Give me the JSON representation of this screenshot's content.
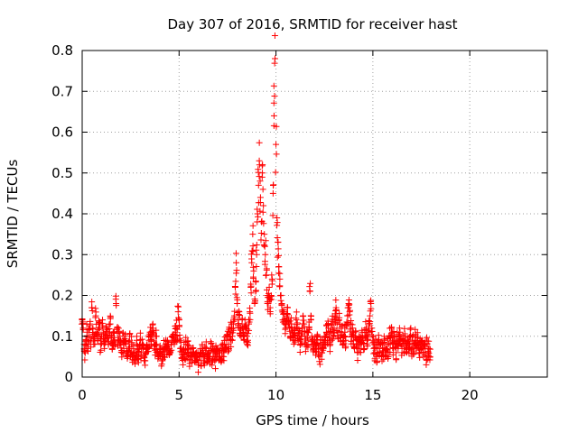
{
  "chart_data": {
    "type": "scatter",
    "title": "Day 307 of 2016, SRMTID for receiver hast",
    "xlabel": "GPS time / hours",
    "ylabel": "SRMTID / TECUs",
    "xlim": [
      0,
      24
    ],
    "ylim": [
      0,
      0.8
    ],
    "x_ticks": [
      "0",
      "5",
      "10",
      "15",
      "20"
    ],
    "y_ticks": [
      "0",
      "0.1",
      "0.2",
      "0.3",
      "0.4",
      "0.5",
      "0.6",
      "0.7",
      "0.8"
    ],
    "x_tick_values": [
      0,
      5,
      10,
      15,
      20
    ],
    "y_tick_values": [
      0,
      0.1,
      0.2,
      0.3,
      0.4,
      0.5,
      0.6,
      0.7,
      0.8
    ],
    "grid": true,
    "marker": "+",
    "color": "#ff0000",
    "series": [
      {
        "name": "SRMTID",
        "x_start": 0,
        "x_step": 0.05,
        "values": [
          0.14,
          0.12,
          0.08,
          0.06,
          0.09,
          0.11,
          0.07,
          0.1,
          0.13,
          0.09,
          0.17,
          0.12,
          0.08,
          0.1,
          0.15,
          0.11,
          0.09,
          0.13,
          0.12,
          0.08,
          0.1,
          0.14,
          0.11,
          0.07,
          0.09,
          0.12,
          0.1,
          0.08,
          0.11,
          0.13,
          0.1,
          0.07,
          0.09,
          0.11,
          0.08,
          0.18,
          0.12,
          0.09,
          0.11,
          0.1,
          0.08,
          0.06,
          0.09,
          0.07,
          0.1,
          0.08,
          0.06,
          0.05,
          0.07,
          0.09,
          0.06,
          0.08,
          0.05,
          0.07,
          0.06,
          0.04,
          0.08,
          0.06,
          0.05,
          0.07,
          0.09,
          0.06,
          0.08,
          0.07,
          0.05,
          0.04,
          0.06,
          0.08,
          0.07,
          0.09,
          0.11,
          0.08,
          0.1,
          0.13,
          0.09,
          0.07,
          0.1,
          0.08,
          0.06,
          0.05,
          0.07,
          0.06,
          0.04,
          0.05,
          0.07,
          0.06,
          0.08,
          0.07,
          0.09,
          0.08,
          0.07,
          0.06,
          0.08,
          0.1,
          0.09,
          0.08,
          0.11,
          0.12,
          0.1,
          0.16,
          0.14,
          0.09,
          0.07,
          0.06,
          0.05,
          0.07,
          0.06,
          0.08,
          0.05,
          0.07,
          0.06,
          0.04,
          0.06,
          0.05,
          0.07,
          0.06,
          0.05,
          0.04,
          0.06,
          0.05,
          0.03,
          0.05,
          0.07,
          0.04,
          0.06,
          0.05,
          0.04,
          0.06,
          0.07,
          0.05,
          0.04,
          0.06,
          0.05,
          0.07,
          0.04,
          0.06,
          0.05,
          0.04,
          0.06,
          0.05,
          0.07,
          0.06,
          0.05,
          0.04,
          0.06,
          0.07,
          0.05,
          0.08,
          0.07,
          0.09,
          0.1,
          0.08,
          0.11,
          0.09,
          0.12,
          0.1,
          0.13,
          0.15,
          0.22,
          0.28,
          0.18,
          0.14,
          0.16,
          0.12,
          0.1,
          0.13,
          0.11,
          0.09,
          0.14,
          0.12,
          0.1,
          0.09,
          0.13,
          0.16,
          0.22,
          0.28,
          0.35,
          0.26,
          0.18,
          0.21,
          0.3,
          0.4,
          0.47,
          0.52,
          0.44,
          0.38,
          0.5,
          0.42,
          0.35,
          0.3,
          0.25,
          0.2,
          0.18,
          0.22,
          0.17,
          0.2,
          0.24,
          0.45,
          0.64,
          0.78,
          0.57,
          0.39,
          0.33,
          0.27,
          0.24,
          0.2,
          0.18,
          0.14,
          0.16,
          0.13,
          0.12,
          0.15,
          0.17,
          0.14,
          0.12,
          0.1,
          0.13,
          0.11,
          0.09,
          0.12,
          0.1,
          0.14,
          0.12,
          0.09,
          0.11,
          0.08,
          0.1,
          0.12,
          0.15,
          0.13,
          0.1,
          0.08,
          0.11,
          0.09,
          0.12,
          0.21,
          0.14,
          0.1,
          0.08,
          0.07,
          0.09,
          0.06,
          0.08,
          0.1,
          0.07,
          0.05,
          0.08,
          0.06,
          0.09,
          0.07,
          0.1,
          0.08,
          0.11,
          0.09,
          0.12,
          0.1,
          0.08,
          0.11,
          0.13,
          0.1,
          0.12,
          0.15,
          0.17,
          0.13,
          0.11,
          0.14,
          0.12,
          0.09,
          0.11,
          0.08,
          0.1,
          0.12,
          0.09,
          0.13,
          0.15,
          0.18,
          0.16,
          0.13,
          0.1,
          0.12,
          0.09,
          0.07,
          0.1,
          0.08,
          0.06,
          0.09,
          0.07,
          0.1,
          0.08,
          0.11,
          0.09,
          0.07,
          0.1,
          0.12,
          0.09,
          0.11,
          0.13,
          0.15,
          0.18,
          0.12,
          0.09,
          0.07,
          0.06,
          0.08,
          0.05,
          0.07,
          0.09,
          0.06,
          0.08,
          0.05,
          0.07,
          0.06,
          0.09,
          0.07,
          0.05,
          0.08,
          0.06,
          0.1,
          0.08,
          0.12,
          0.09,
          0.07,
          0.1,
          0.08,
          0.06,
          0.09,
          0.07,
          0.1,
          0.11,
          0.08,
          0.06,
          0.09,
          0.07,
          0.1,
          0.08,
          0.06,
          0.09,
          0.07,
          0.08,
          0.1,
          0.07,
          0.09,
          0.06,
          0.08,
          0.1,
          0.07,
          0.09,
          0.08,
          0.06,
          0.08,
          0.07,
          0.09,
          0.06,
          0.08,
          0.07,
          0.05,
          0.08,
          0.06,
          0.07,
          0.05
        ]
      }
    ]
  }
}
